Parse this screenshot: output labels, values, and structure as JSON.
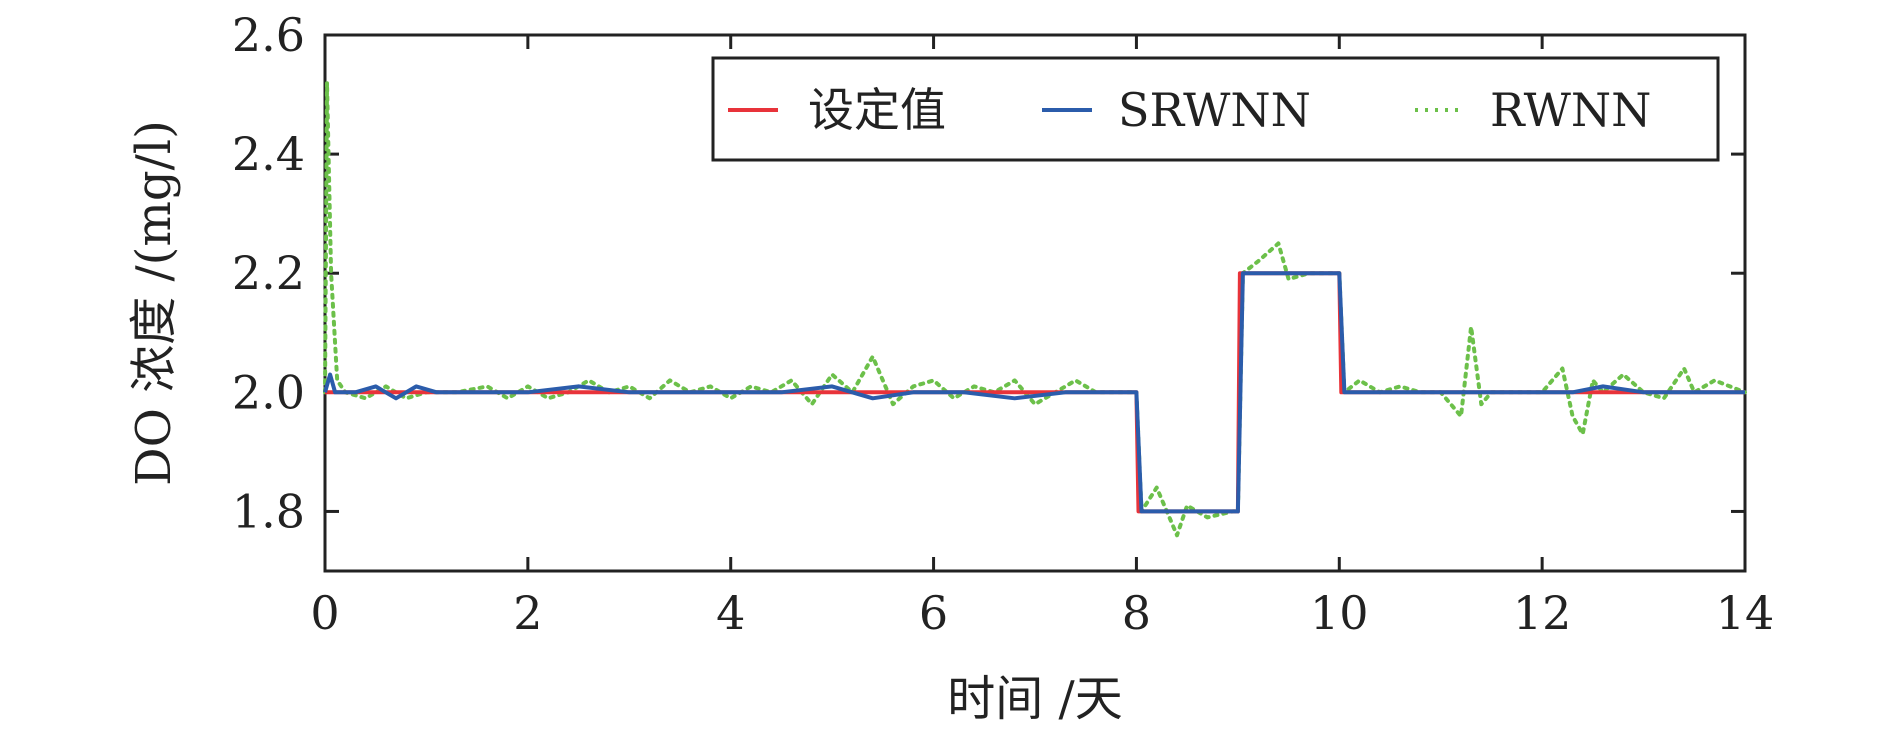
{
  "chart_data": {
    "type": "line",
    "xlabel": "时间 /天",
    "ylabel": "DO 浓度 /(mg/l)",
    "xlim": [
      0,
      14
    ],
    "ylim": [
      1.7,
      2.6
    ],
    "xticks": [
      "0",
      "2",
      "4",
      "6",
      "8",
      "10",
      "12",
      "14"
    ],
    "yticks": [
      "1.8",
      "2.0",
      "2.2",
      "2.4",
      "2.6"
    ],
    "legend_position": "top-right",
    "grid": false,
    "series": [
      {
        "name": "设定值",
        "color": "#e8333a",
        "style": "solid",
        "x": [
          0,
          8.0,
          8.02,
          9.0,
          9.02,
          10.0,
          10.02,
          14
        ],
        "y": [
          2.0,
          2.0,
          1.8,
          1.8,
          2.2,
          2.2,
          2.0,
          2.0
        ]
      },
      {
        "name": "SRWNN",
        "color": "#2b5cab",
        "style": "solid",
        "x": [
          0,
          0.05,
          0.1,
          0.3,
          0.5,
          0.7,
          0.9,
          1.1,
          1.5,
          2.0,
          2.5,
          3.0,
          3.5,
          4.0,
          4.5,
          5.0,
          5.4,
          5.8,
          6.3,
          6.8,
          7.3,
          7.9,
          8.0,
          8.05,
          8.5,
          8.95,
          9.0,
          9.05,
          9.5,
          9.95,
          10.0,
          10.05,
          10.3,
          10.7,
          11.2,
          11.8,
          12.3,
          12.6,
          13.0,
          13.4,
          13.7,
          14.0
        ],
        "y": [
          2.0,
          2.03,
          2.0,
          2.0,
          2.01,
          1.99,
          2.01,
          2.0,
          2.0,
          2.0,
          2.01,
          2.0,
          2.0,
          2.0,
          2.0,
          2.01,
          1.99,
          2.0,
          2.0,
          1.99,
          2.0,
          2.0,
          2.0,
          1.8,
          1.8,
          1.8,
          1.8,
          2.2,
          2.2,
          2.2,
          2.2,
          2.0,
          2.0,
          2.0,
          2.0,
          2.0,
          2.0,
          2.01,
          2.0,
          2.0,
          2.0,
          2.0
        ]
      },
      {
        "name": "RWNN",
        "color": "#6cc04a",
        "style": "dotted",
        "x": [
          0,
          0.02,
          0.06,
          0.12,
          0.2,
          0.4,
          0.6,
          0.8,
          1.0,
          1.3,
          1.6,
          1.8,
          2.0,
          2.2,
          2.4,
          2.6,
          2.8,
          3.0,
          3.2,
          3.4,
          3.6,
          3.8,
          4.0,
          4.2,
          4.4,
          4.6,
          4.8,
          5.0,
          5.2,
          5.4,
          5.6,
          5.8,
          6.0,
          6.2,
          6.4,
          6.6,
          6.8,
          7.0,
          7.2,
          7.4,
          7.6,
          7.9,
          8.0,
          8.05,
          8.2,
          8.4,
          8.5,
          8.7,
          8.95,
          9.0,
          9.05,
          9.2,
          9.4,
          9.5,
          9.7,
          9.95,
          10.0,
          10.05,
          10.2,
          10.4,
          10.6,
          10.8,
          11.0,
          11.2,
          11.3,
          11.4,
          11.5,
          11.7,
          12.0,
          12.2,
          12.3,
          12.4,
          12.5,
          12.6,
          12.8,
          13.0,
          13.2,
          13.4,
          13.5,
          13.7,
          14.0
        ],
        "y": [
          2.0,
          2.52,
          2.2,
          2.02,
          2.0,
          1.99,
          2.01,
          1.99,
          2.0,
          2.0,
          2.01,
          1.99,
          2.01,
          1.99,
          2.0,
          2.02,
          2.0,
          2.01,
          1.99,
          2.02,
          2.0,
          2.01,
          1.99,
          2.01,
          2.0,
          2.02,
          1.98,
          2.03,
          2.0,
          2.06,
          1.98,
          2.01,
          2.02,
          1.99,
          2.01,
          2.0,
          2.02,
          1.98,
          2.0,
          2.02,
          2.0,
          2.0,
          2.0,
          1.8,
          1.84,
          1.76,
          1.81,
          1.79,
          1.8,
          1.8,
          2.2,
          2.22,
          2.25,
          2.19,
          2.2,
          2.2,
          2.2,
          2.0,
          2.02,
          2.0,
          2.01,
          2.0,
          2.0,
          1.96,
          2.11,
          1.98,
          2.0,
          2.0,
          2.0,
          2.04,
          1.96,
          1.93,
          2.02,
          2.0,
          2.03,
          2.0,
          1.99,
          2.04,
          2.0,
          2.02,
          2.0
        ]
      }
    ]
  }
}
